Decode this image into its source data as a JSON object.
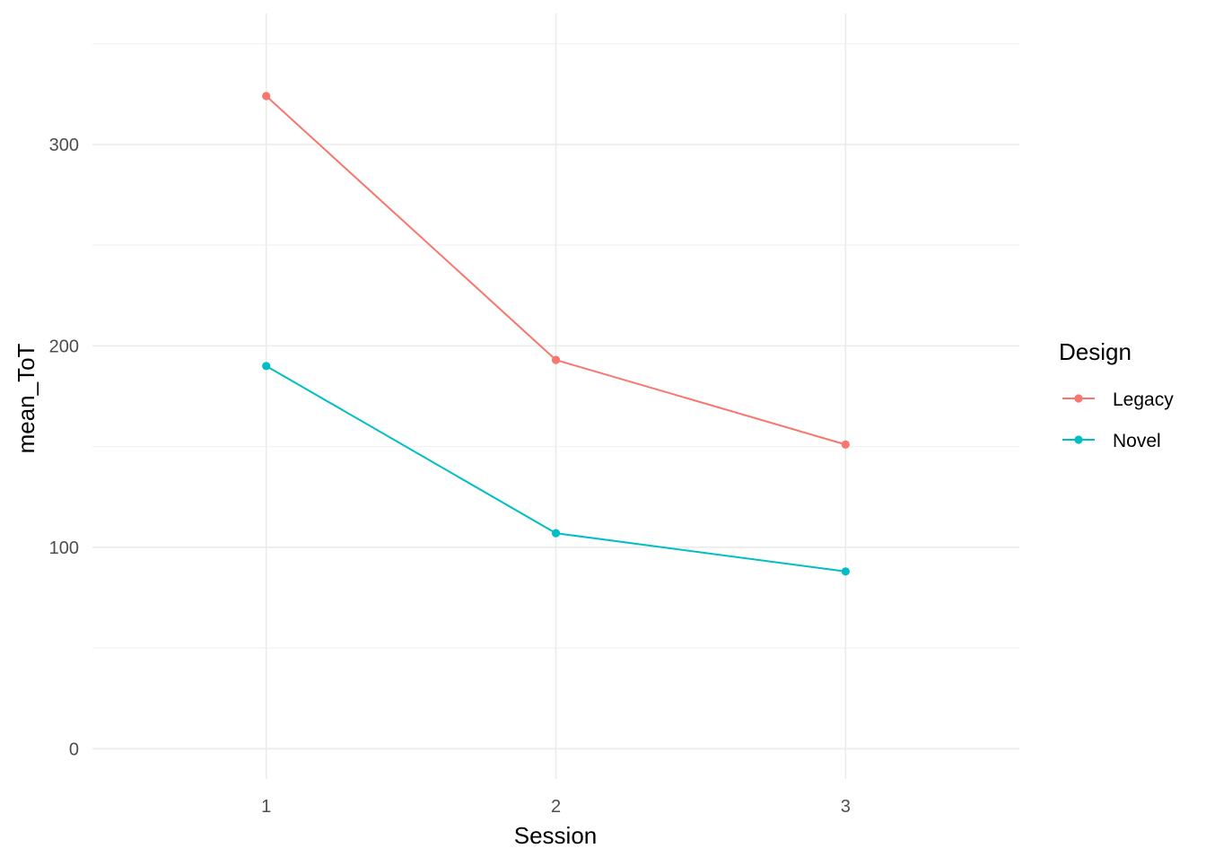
{
  "chart_data": {
    "type": "line",
    "title": "",
    "xlabel": "Session",
    "ylabel": "mean_ToT",
    "categories": [
      "1",
      "2",
      "3"
    ],
    "x": [
      1,
      2,
      3
    ],
    "xlim": [
      0.4,
      3.6
    ],
    "ylim": [
      -15,
      365
    ],
    "yticks": [
      0,
      100,
      200,
      300
    ],
    "ytick_labels": [
      "0",
      "100",
      "200",
      "300"
    ],
    "grid": true,
    "legend": {
      "title": "Design",
      "placement": "right"
    },
    "series": [
      {
        "name": "Legacy",
        "color": "#F8766D",
        "values": [
          324,
          193,
          151
        ]
      },
      {
        "name": "Novel",
        "color": "#00BFC4",
        "values": [
          190,
          107,
          88
        ]
      }
    ]
  }
}
